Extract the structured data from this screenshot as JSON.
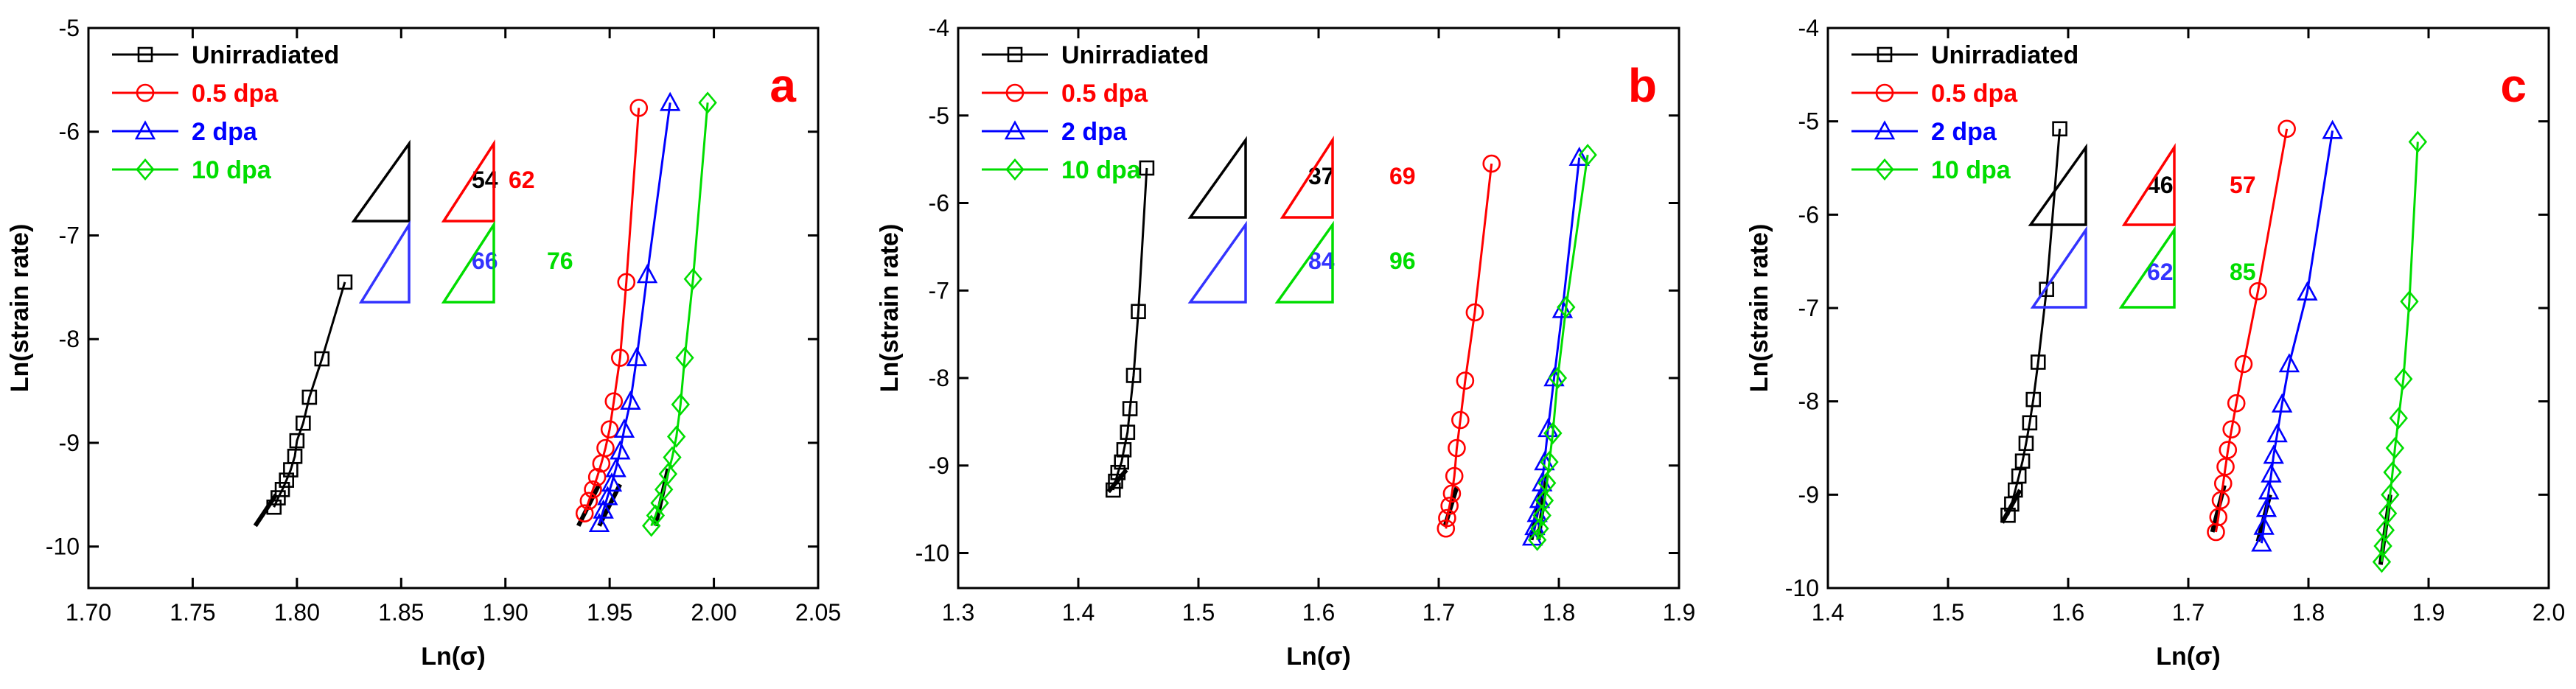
{
  "chart_data": [
    {
      "type": "line",
      "panel_label": "a",
      "xlabel": "Ln(σ)",
      "ylabel": "Ln(strain rate)",
      "xlim": [
        1.7,
        2.05
      ],
      "ylim": [
        -10.4,
        -5
      ],
      "xticks": [
        1.7,
        1.75,
        1.8,
        1.85,
        1.9,
        1.95,
        2.0,
        2.05
      ],
      "xtick_labels": [
        "1.70",
        "1.75",
        "1.80",
        "1.85",
        "1.90",
        "1.95",
        "2.00",
        "2.05"
      ],
      "yticks": [
        -10,
        -9,
        -8,
        -7,
        -6,
        -5
      ],
      "ytick_labels": [
        "-10",
        "-9",
        "-8",
        "-7",
        "-6",
        "-5"
      ],
      "legend_position": "top-left",
      "series": [
        {
          "name": "Unirradiated",
          "color": "#000000",
          "marker": "square",
          "x": [
            1.789,
            1.791,
            1.793,
            1.795,
            1.797,
            1.799,
            1.8,
            1.803,
            1.806,
            1.812,
            1.823
          ],
          "y": [
            -9.62,
            -9.53,
            -9.45,
            -9.36,
            -9.26,
            -9.13,
            -8.98,
            -8.81,
            -8.56,
            -8.19,
            -7.45
          ]
        },
        {
          "name": "0.5 dpa",
          "color": "#ff0000",
          "marker": "circle",
          "x": [
            1.938,
            1.94,
            1.942,
            1.944,
            1.946,
            1.948,
            1.95,
            1.952,
            1.955,
            1.958,
            1.964,
            1.971
          ],
          "y": [
            -9.68,
            -9.56,
            -9.45,
            -9.33,
            -9.2,
            -9.05,
            -8.87,
            -8.6,
            -8.18,
            -7.45,
            -5.77,
            -5.77
          ],
          "draw_last": 11
        },
        {
          "name": "2 dpa",
          "color": "#0000ff",
          "marker": "triangle",
          "x": [
            1.945,
            1.947,
            1.949,
            1.951,
            1.953,
            1.955,
            1.957,
            1.96,
            1.963,
            1.968,
            1.979
          ],
          "y": [
            -9.78,
            -9.65,
            -9.52,
            -9.39,
            -9.25,
            -9.08,
            -8.87,
            -8.6,
            -8.18,
            -7.38,
            -5.72
          ]
        },
        {
          "name": "10 dpa",
          "color": "#00dd00",
          "marker": "diamond",
          "x": [
            1.97,
            1.972,
            1.974,
            1.976,
            1.978,
            1.98,
            1.982,
            1.984,
            1.986,
            1.99,
            1.997,
            2.005
          ],
          "y": [
            -9.8,
            -9.7,
            -9.58,
            -9.45,
            -9.3,
            -9.14,
            -8.94,
            -8.63,
            -8.18,
            -7.42,
            -5.72,
            -5.72
          ],
          "draw_last": 11
        }
      ],
      "slopes": [
        {
          "value": "54",
          "color": "#000000"
        },
        {
          "value": "62",
          "color": "#ff0000"
        },
        {
          "value": "66",
          "color": "#3333ff"
        },
        {
          "value": "76",
          "color": "#00dd00"
        }
      ]
    },
    {
      "type": "line",
      "panel_label": "b",
      "xlabel": "Ln(σ)",
      "ylabel": "Ln(strain rate)",
      "xlim": [
        1.3,
        1.9
      ],
      "ylim": [
        -10.4,
        -4
      ],
      "xticks": [
        1.3,
        1.4,
        1.5,
        1.6,
        1.7,
        1.8,
        1.9
      ],
      "xtick_labels": [
        "1.3",
        "1.4",
        "1.5",
        "1.6",
        "1.7",
        "1.8",
        "1.9"
      ],
      "yticks": [
        -10,
        -9,
        -8,
        -7,
        -6,
        -5,
        -4
      ],
      "ytick_labels": [
        "-10",
        "-9",
        "-8",
        "-7",
        "-6",
        "-5",
        "-4"
      ],
      "legend_position": "top-left",
      "series": [
        {
          "name": "Unirradiated",
          "color": "#000000",
          "marker": "square",
          "x": [
            1.429,
            1.431,
            1.433,
            1.436,
            1.438,
            1.441,
            1.443,
            1.446,
            1.45,
            1.457,
            1.469
          ],
          "y": [
            -9.28,
            -9.18,
            -9.08,
            -8.96,
            -8.82,
            -8.62,
            -8.35,
            -7.97,
            -7.24,
            -5.6,
            -5.6
          ],
          "draw_last": 10
        },
        {
          "name": "0.5 dpa",
          "color": "#ff0000",
          "marker": "circle",
          "x": [
            1.706,
            1.707,
            1.709,
            1.711,
            1.713,
            1.715,
            1.718,
            1.722,
            1.73,
            1.744
          ],
          "y": [
            -9.72,
            -9.6,
            -9.46,
            -9.32,
            -9.12,
            -8.8,
            -8.48,
            -8.03,
            -7.25,
            -5.55
          ]
        },
        {
          "name": "2 dpa",
          "color": "#0000ff",
          "marker": "triangle",
          "x": [
            1.778,
            1.78,
            1.782,
            1.784,
            1.786,
            1.788,
            1.791,
            1.796,
            1.803,
            1.817
          ],
          "y": [
            -9.82,
            -9.7,
            -9.55,
            -9.39,
            -9.2,
            -8.96,
            -8.58,
            -8.0,
            -7.22,
            -5.48
          ]
        },
        {
          "name": "10 dpa",
          "color": "#00dd00",
          "marker": "diamond",
          "x": [
            1.782,
            1.784,
            1.786,
            1.788,
            1.79,
            1.792,
            1.795,
            1.799,
            1.806,
            1.824
          ],
          "y": [
            -9.85,
            -9.72,
            -9.57,
            -9.4,
            -9.2,
            -8.96,
            -8.63,
            -8.0,
            -7.19,
            -5.45
          ]
        }
      ],
      "slopes": [
        {
          "value": "37",
          "color": "#000000"
        },
        {
          "value": "69",
          "color": "#ff0000"
        },
        {
          "value": "84",
          "color": "#3333ff"
        },
        {
          "value": "96",
          "color": "#00dd00"
        }
      ]
    },
    {
      "type": "line",
      "panel_label": "c",
      "xlabel": "Ln(σ)",
      "ylabel": "Ln(strain rate)",
      "xlim": [
        1.4,
        2.0
      ],
      "ylim": [
        -10,
        -4
      ],
      "xticks": [
        1.4,
        1.5,
        1.6,
        1.7,
        1.8,
        1.9,
        2.0
      ],
      "xtick_labels": [
        "1.4",
        "1.5",
        "1.6",
        "1.7",
        "1.8",
        "1.9",
        "2.0"
      ],
      "yticks": [
        -10,
        -9,
        -8,
        -7,
        -6,
        -5,
        -4
      ],
      "ytick_labels": [
        "-10",
        "-9",
        "-8",
        "-7",
        "-6",
        "-5",
        "-4"
      ],
      "legend_position": "top-left",
      "series": [
        {
          "name": "Unirradiated",
          "color": "#000000",
          "marker": "square",
          "x": [
            1.55,
            1.553,
            1.556,
            1.559,
            1.562,
            1.565,
            1.568,
            1.571,
            1.575,
            1.582,
            1.593,
            1.61
          ],
          "y": [
            -9.22,
            -9.1,
            -8.95,
            -8.8,
            -8.64,
            -8.45,
            -8.23,
            -7.98,
            -7.58,
            -6.8,
            -5.08,
            -5.08
          ],
          "draw_last": 11
        },
        {
          "name": "0.5 dpa",
          "color": "#ff0000",
          "marker": "circle",
          "x": [
            1.723,
            1.725,
            1.727,
            1.729,
            1.731,
            1.733,
            1.736,
            1.74,
            1.746,
            1.758,
            1.782
          ],
          "y": [
            -9.4,
            -9.24,
            -9.06,
            -8.88,
            -8.7,
            -8.52,
            -8.3,
            -8.02,
            -7.6,
            -6.82,
            -5.08
          ]
        },
        {
          "name": "2 dpa",
          "color": "#0000ff",
          "marker": "triangle",
          "x": [
            1.761,
            1.763,
            1.765,
            1.767,
            1.769,
            1.771,
            1.774,
            1.778,
            1.784,
            1.799,
            1.82
          ],
          "y": [
            -9.52,
            -9.34,
            -9.15,
            -8.96,
            -8.78,
            -8.58,
            -8.35,
            -8.03,
            -7.6,
            -6.83,
            -5.1
          ]
        },
        {
          "name": "10 dpa",
          "color": "#00dd00",
          "marker": "diamond",
          "x": [
            1.861,
            1.862,
            1.864,
            1.866,
            1.868,
            1.87,
            1.872,
            1.875,
            1.879,
            1.884,
            1.891,
            1.911
          ],
          "y": [
            -9.72,
            -9.55,
            -9.38,
            -9.2,
            -9.0,
            -8.76,
            -8.5,
            -8.18,
            -7.76,
            -6.93,
            -5.22,
            -5.22
          ],
          "draw_last": 11
        }
      ],
      "slopes": [
        {
          "value": "46",
          "color": "#000000"
        },
        {
          "value": "57",
          "color": "#ff0000"
        },
        {
          "value": "62",
          "color": "#3333ff"
        },
        {
          "value": "85",
          "color": "#00dd00"
        }
      ]
    }
  ]
}
